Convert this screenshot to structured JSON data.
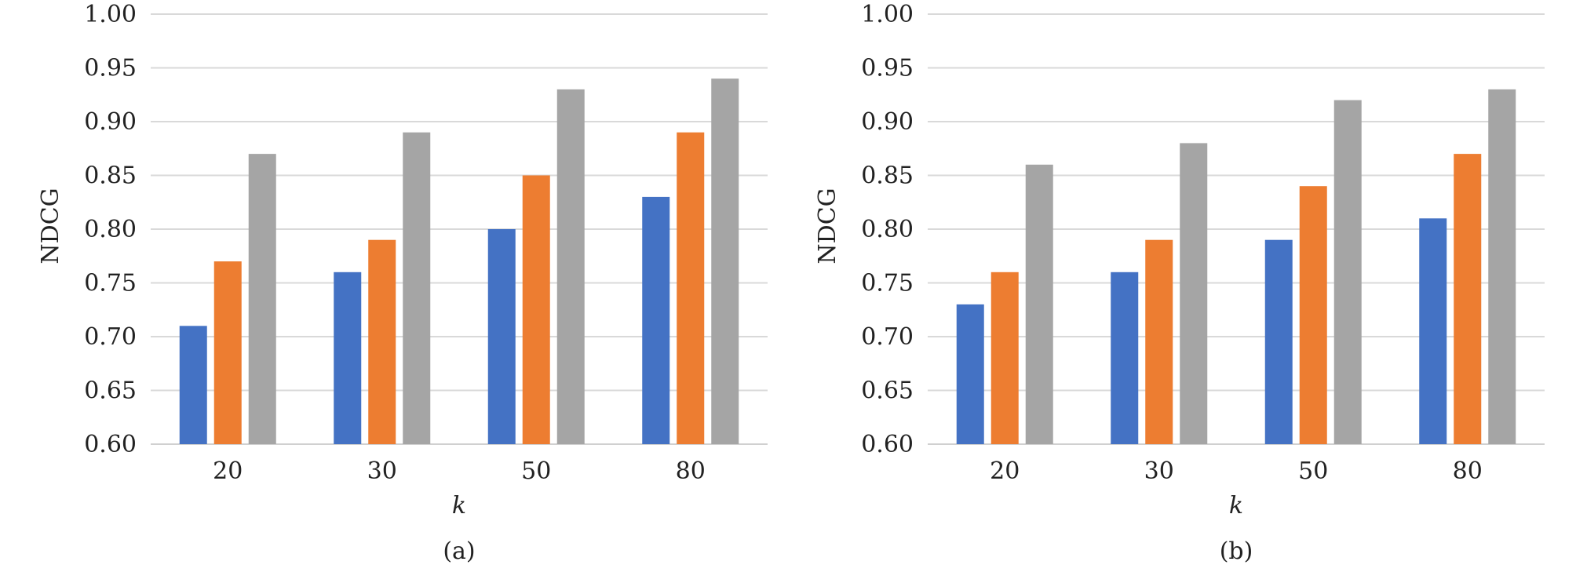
{
  "chart_data": [
    {
      "type": "bar",
      "caption": "(a)",
      "categories": [
        "20",
        "30",
        "50",
        "80"
      ],
      "series": [
        {
          "color": "#4472c4",
          "values": [
            0.71,
            0.76,
            0.8,
            0.83
          ]
        },
        {
          "color": "#ed7d31",
          "values": [
            0.77,
            0.79,
            0.85,
            0.89
          ]
        },
        {
          "color": "#a5a5a5",
          "values": [
            0.87,
            0.89,
            0.93,
            0.94
          ]
        }
      ],
      "xlabel": "k",
      "ylabel": "NDCG",
      "ylim": [
        0.6,
        1.0
      ],
      "yticks": [
        "0.60",
        "0.65",
        "0.70",
        "0.75",
        "0.80",
        "0.85",
        "0.90",
        "0.95",
        "1.00"
      ],
      "grid": true,
      "legend": "none"
    },
    {
      "type": "bar",
      "caption": "(b)",
      "categories": [
        "20",
        "30",
        "50",
        "80"
      ],
      "series": [
        {
          "color": "#4472c4",
          "values": [
            0.73,
            0.76,
            0.79,
            0.81
          ]
        },
        {
          "color": "#ed7d31",
          "values": [
            0.76,
            0.79,
            0.84,
            0.87
          ]
        },
        {
          "color": "#a5a5a5",
          "values": [
            0.86,
            0.88,
            0.92,
            0.93
          ]
        }
      ],
      "xlabel": "k",
      "ylabel": "NDCG",
      "ylim": [
        0.6,
        1.0
      ],
      "yticks": [
        "0.60",
        "0.65",
        "0.70",
        "0.75",
        "0.80",
        "0.85",
        "0.90",
        "0.95",
        "1.00"
      ],
      "grid": true,
      "legend": "none"
    }
  ]
}
